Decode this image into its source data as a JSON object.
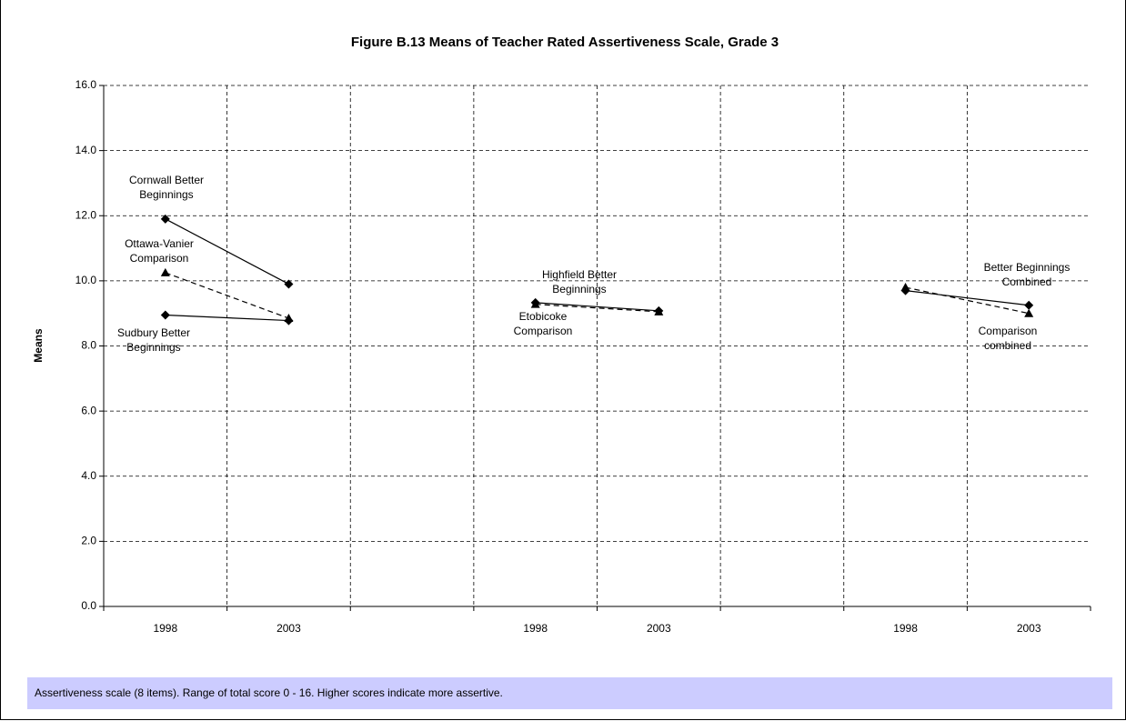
{
  "chart_data": {
    "type": "line",
    "title": "Figure B.13  Means of Teacher Rated Assertiveness Scale, Grade 3",
    "y_label": "Means",
    "note": "Assertiveness scale (8 items). Range of total score 0 - 16. Higher scores indicate more assertive.",
    "categories": [
      "1998",
      "2003",
      null,
      "1998",
      "2003",
      null,
      "1998",
      "2003"
    ],
    "ylim": [
      0,
      16
    ],
    "yticks": [
      {
        "value": 0,
        "label": "0.0"
      },
      {
        "value": 2,
        "label": "2.0"
      },
      {
        "value": 4,
        "label": "4.0"
      },
      {
        "value": 6,
        "label": "6.0"
      },
      {
        "value": 8,
        "label": "8.0"
      },
      {
        "value": 10,
        "label": "10.0"
      },
      {
        "value": 12,
        "label": "12.0"
      },
      {
        "value": 14,
        "label": "14.0"
      },
      {
        "value": 16,
        "label": "16.0"
      }
    ],
    "grid": true,
    "series": [
      {
        "name": "Cornwall Better Beginnings",
        "color": "#000000",
        "line_style": "solid",
        "marker": "diamond",
        "values": [
          11.9,
          9.9,
          null,
          null,
          null,
          null,
          null,
          null
        ]
      },
      {
        "name": "Ottawa-Vanier Comparison",
        "color": "#000000",
        "line_style": "dashed",
        "marker": "triangle",
        "values": [
          10.25,
          8.85,
          null,
          null,
          null,
          null,
          null,
          null
        ]
      },
      {
        "name": "Sudbury Better Beginnings",
        "color": "#000000",
        "line_style": "solid",
        "marker": "diamond",
        "values": [
          8.95,
          8.78,
          null,
          null,
          null,
          null,
          null,
          null
        ]
      },
      {
        "name": "Highfield Better Beginnings",
        "color": "#000000",
        "line_style": "solid",
        "marker": "diamond",
        "values": [
          null,
          null,
          null,
          9.33,
          9.08,
          null,
          null,
          null
        ]
      },
      {
        "name": "Etobicoke Comparison",
        "color": "#000000",
        "line_style": "dashed",
        "marker": "triangle",
        "values": [
          null,
          null,
          null,
          9.28,
          9.05,
          null,
          null,
          null
        ]
      },
      {
        "name": "Better Beginnings Combined",
        "color": "#000000",
        "line_style": "solid",
        "marker": "diamond",
        "values": [
          null,
          null,
          null,
          null,
          null,
          null,
          9.7,
          9.25
        ]
      },
      {
        "name": "Comparison combined",
        "color": "#000000",
        "line_style": "dashed",
        "marker": "triangle",
        "values": [
          null,
          null,
          null,
          null,
          null,
          null,
          9.8,
          9.0
        ]
      }
    ]
  }
}
